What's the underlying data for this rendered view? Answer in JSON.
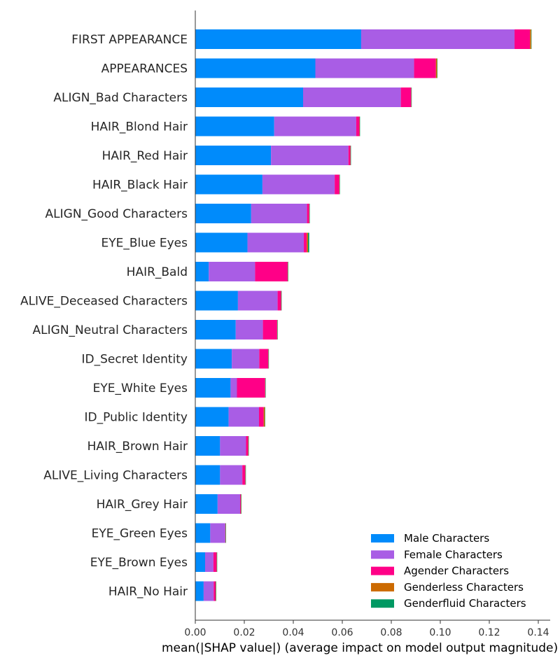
{
  "chart_data": {
    "type": "bar",
    "orientation": "horizontal",
    "stacked": true,
    "title": "",
    "xlabel": "mean(|SHAP value|) (average impact on model output magnitude)",
    "ylabel": "",
    "xlim": [
      0,
      0.145
    ],
    "xticks": [
      "0.00",
      "0.02",
      "0.04",
      "0.06",
      "0.08",
      "0.10",
      "0.12",
      "0.14"
    ],
    "grid": false,
    "legend_position": "bottom-right",
    "categories": [
      "FIRST APPEARANCE",
      "APPEARANCES",
      "ALIGN_Bad Characters",
      "HAIR_Blond Hair",
      "HAIR_Red Hair",
      "HAIR_Black Hair",
      "ALIGN_Good Characters",
      "EYE_Blue Eyes",
      "HAIR_Bald",
      "ALIVE_Deceased Characters",
      "ALIGN_Neutral Characters",
      "ID_Secret Identity",
      "EYE_White Eyes",
      "ID_Public Identity",
      "HAIR_Brown Hair",
      "ALIVE_Living Characters",
      "HAIR_Grey Hair",
      "EYE_Green Eyes",
      "EYE_Brown Eyes",
      "HAIR_No Hair"
    ],
    "series": [
      {
        "name": "Male Characters",
        "color": "#008bfb",
        "values": [
          0.0677,
          0.049,
          0.044,
          0.0322,
          0.0309,
          0.0274,
          0.0228,
          0.0213,
          0.0055,
          0.0174,
          0.0165,
          0.0149,
          0.0144,
          0.0136,
          0.0101,
          0.0101,
          0.0091,
          0.0061,
          0.004,
          0.0034
        ]
      },
      {
        "name": "Female Characters",
        "color": "#a95de5",
        "values": [
          0.0626,
          0.0403,
          0.0399,
          0.0335,
          0.0316,
          0.0295,
          0.0228,
          0.023,
          0.0189,
          0.0162,
          0.0111,
          0.0112,
          0.0026,
          0.0124,
          0.0106,
          0.0091,
          0.0092,
          0.0061,
          0.0034,
          0.0041
        ]
      },
      {
        "name": "Agender Characters",
        "color": "#ff0087",
        "values": [
          0.0063,
          0.0089,
          0.0042,
          0.0013,
          0.0008,
          0.0019,
          0.0009,
          0.0012,
          0.0133,
          0.0014,
          0.0058,
          0.0037,
          0.0115,
          0.0019,
          0.0009,
          0.0012,
          0.0003,
          0.0001,
          0.0013,
          0.0008
        ]
      },
      {
        "name": "Genderless Characters",
        "color": "#cc6a00",
        "values": [
          0.0005,
          0.0005,
          0.0001,
          0.0001,
          0.0001,
          0.0001,
          0.0001,
          0.0005,
          0.0001,
          0.0001,
          0.0001,
          0.0001,
          0.0001,
          0.0005,
          0.0001,
          0.0001,
          0.0001,
          0.0001,
          0.0001,
          0.0001
        ]
      },
      {
        "name": "Genderfluid Characters",
        "color": "#009963",
        "values": [
          0.0001,
          0.0001,
          0.0001,
          0.0001,
          0.0001,
          0.0001,
          0.0001,
          0.0005,
          0.0001,
          0.0001,
          0.0001,
          0.0001,
          0.0001,
          0.0001,
          0.0001,
          0.0001,
          0.0001,
          0.0001,
          0.0001,
          0.0001
        ]
      }
    ]
  }
}
